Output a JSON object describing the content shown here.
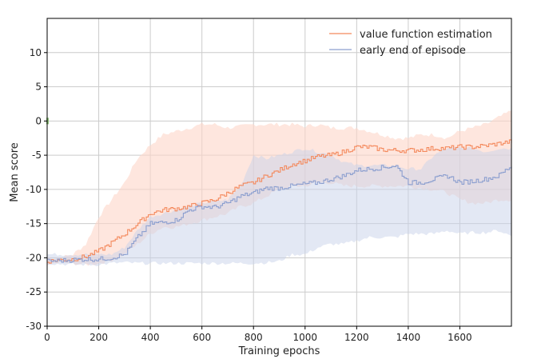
{
  "chart_data": {
    "type": "line",
    "title": "",
    "xlabel": "Training epochs",
    "ylabel": "Mean score",
    "xlim": [
      0,
      1800
    ],
    "ylim": [
      -30,
      15
    ],
    "xticks": [
      0,
      200,
      400,
      600,
      800,
      1000,
      1200,
      1400,
      1600
    ],
    "xtick_labels": [
      "0",
      "200",
      "400",
      "600",
      "800",
      "1000",
      "1200",
      "1400",
      "1600"
    ],
    "yticks": [
      -30,
      -25,
      -20,
      -15,
      -10,
      -5,
      0,
      5,
      10
    ],
    "ytick_labels": [
      "-30",
      "-25",
      "-20",
      "-15",
      "-10",
      "-5",
      "0",
      "5",
      "10"
    ],
    "grid": true,
    "legend_position": "top-right",
    "series": [
      {
        "name": "value function estimation",
        "color": "#f4895c",
        "fill_color": "#fdd5c8",
        "x": [
          0,
          50,
          100,
          150,
          200,
          250,
          300,
          350,
          400,
          450,
          500,
          550,
          600,
          650,
          700,
          750,
          800,
          850,
          900,
          950,
          1000,
          1050,
          1100,
          1150,
          1200,
          1250,
          1300,
          1350,
          1400,
          1450,
          1500,
          1550,
          1600,
          1650,
          1700,
          1750,
          1800
        ],
        "mean": [
          -20.5,
          -20.3,
          -20.2,
          -19.8,
          -19.0,
          -17.8,
          -16.5,
          -15.0,
          -13.5,
          -13.0,
          -12.8,
          -12.5,
          -12.0,
          -11.5,
          -10.5,
          -9.5,
          -9.0,
          -8.0,
          -7.2,
          -6.3,
          -5.8,
          -5.2,
          -5.0,
          -4.5,
          -3.8,
          -3.8,
          -4.2,
          -4.3,
          -4.3,
          -4.2,
          -4.0,
          -4.0,
          -3.8,
          -3.8,
          -3.6,
          -3.3,
          -3.0
        ],
        "upper": [
          -20.0,
          -20.0,
          -19.5,
          -18.0,
          -14.0,
          -11.5,
          -9.0,
          -5.5,
          -3.5,
          -2.0,
          -1.5,
          -1.0,
          -0.5,
          -0.5,
          -1.0,
          -0.8,
          -0.5,
          -0.5,
          -0.5,
          -0.5,
          -0.8,
          -0.5,
          -1.0,
          -1.0,
          -1.0,
          -1.5,
          -2.0,
          -2.5,
          -2.5,
          -2.0,
          -2.0,
          -2.5,
          -1.5,
          -1.0,
          -0.5,
          0.5,
          1.5
        ],
        "lower": [
          -21.0,
          -20.7,
          -20.8,
          -21.0,
          -20.8,
          -20.3,
          -19.5,
          -18.0,
          -16.5,
          -15.5,
          -15.5,
          -15.0,
          -14.5,
          -14.0,
          -13.5,
          -12.5,
          -12.0,
          -11.0,
          -10.0,
          -9.5,
          -9.5,
          -9.0,
          -9.0,
          -9.5,
          -9.5,
          -9.5,
          -9.5,
          -9.5,
          -9.5,
          -9.8,
          -10.0,
          -10.5,
          -11.5,
          -12.0,
          -12.0,
          -11.5,
          -11.5
        ]
      },
      {
        "name": "early end of episode",
        "color": "#8c9fcf",
        "fill_color": "#c8d1ea",
        "x": [
          0,
          50,
          100,
          150,
          200,
          250,
          300,
          350,
          400,
          450,
          500,
          550,
          600,
          650,
          700,
          750,
          800,
          850,
          900,
          950,
          1000,
          1050,
          1100,
          1150,
          1200,
          1250,
          1300,
          1350,
          1400,
          1450,
          1500,
          1550,
          1600,
          1650,
          1700,
          1750,
          1800
        ],
        "mean": [
          -20.5,
          -20.4,
          -20.3,
          -20.2,
          -20.2,
          -20.0,
          -19.5,
          -17.0,
          -15.0,
          -14.8,
          -14.5,
          -13.0,
          -12.5,
          -12.6,
          -12.0,
          -11.0,
          -10.5,
          -9.8,
          -9.8,
          -9.5,
          -9.2,
          -9.0,
          -8.5,
          -8.0,
          -7.2,
          -7.0,
          -6.8,
          -6.5,
          -9.0,
          -9.0,
          -8.5,
          -8.0,
          -9.0,
          -8.8,
          -8.5,
          -8.0,
          -6.5
        ]
      }
    ],
    "fill_bands": [
      {
        "series": "early end of episode",
        "x": [
          0,
          100,
          200,
          250,
          300,
          350,
          400,
          500,
          600,
          700,
          750,
          800,
          850,
          900,
          950,
          1000,
          1050,
          1100,
          1150,
          1200,
          1250,
          1300,
          1350,
          1400,
          1450,
          1500,
          1550,
          1600,
          1650,
          1700,
          1750,
          1800
        ],
        "upper": [
          -19.5,
          -19.5,
          -19.5,
          -19.5,
          -18.5,
          -16.0,
          -14.0,
          -13.0,
          -12.0,
          -11.5,
          -9.5,
          -5.0,
          -5.5,
          -5.0,
          -4.5,
          -4.0,
          -4.5,
          -5.0,
          -6.0,
          -6.5,
          -6.5,
          -6.5,
          -6.5,
          -7.0,
          -7.0,
          -5.0,
          -4.0,
          -4.0,
          -4.0,
          -4.5,
          -4.0,
          -4.0
        ],
        "lower": [
          -20.8,
          -21.0,
          -21.0,
          -20.8,
          -20.7,
          -20.8,
          -20.8,
          -20.8,
          -20.8,
          -20.8,
          -20.8,
          -20.8,
          -20.7,
          -20.5,
          -19.5,
          -19.5,
          -18.5,
          -18.0,
          -18.0,
          -17.5,
          -17.0,
          -17.0,
          -17.0,
          -16.5,
          -16.5,
          -16.5,
          -16.0,
          -16.5,
          -16.3,
          -16.3,
          -16.0,
          -16.8
        ]
      }
    ],
    "markers": [
      {
        "x": 0,
        "y": 0,
        "color": "#8fbf7a"
      }
    ]
  }
}
